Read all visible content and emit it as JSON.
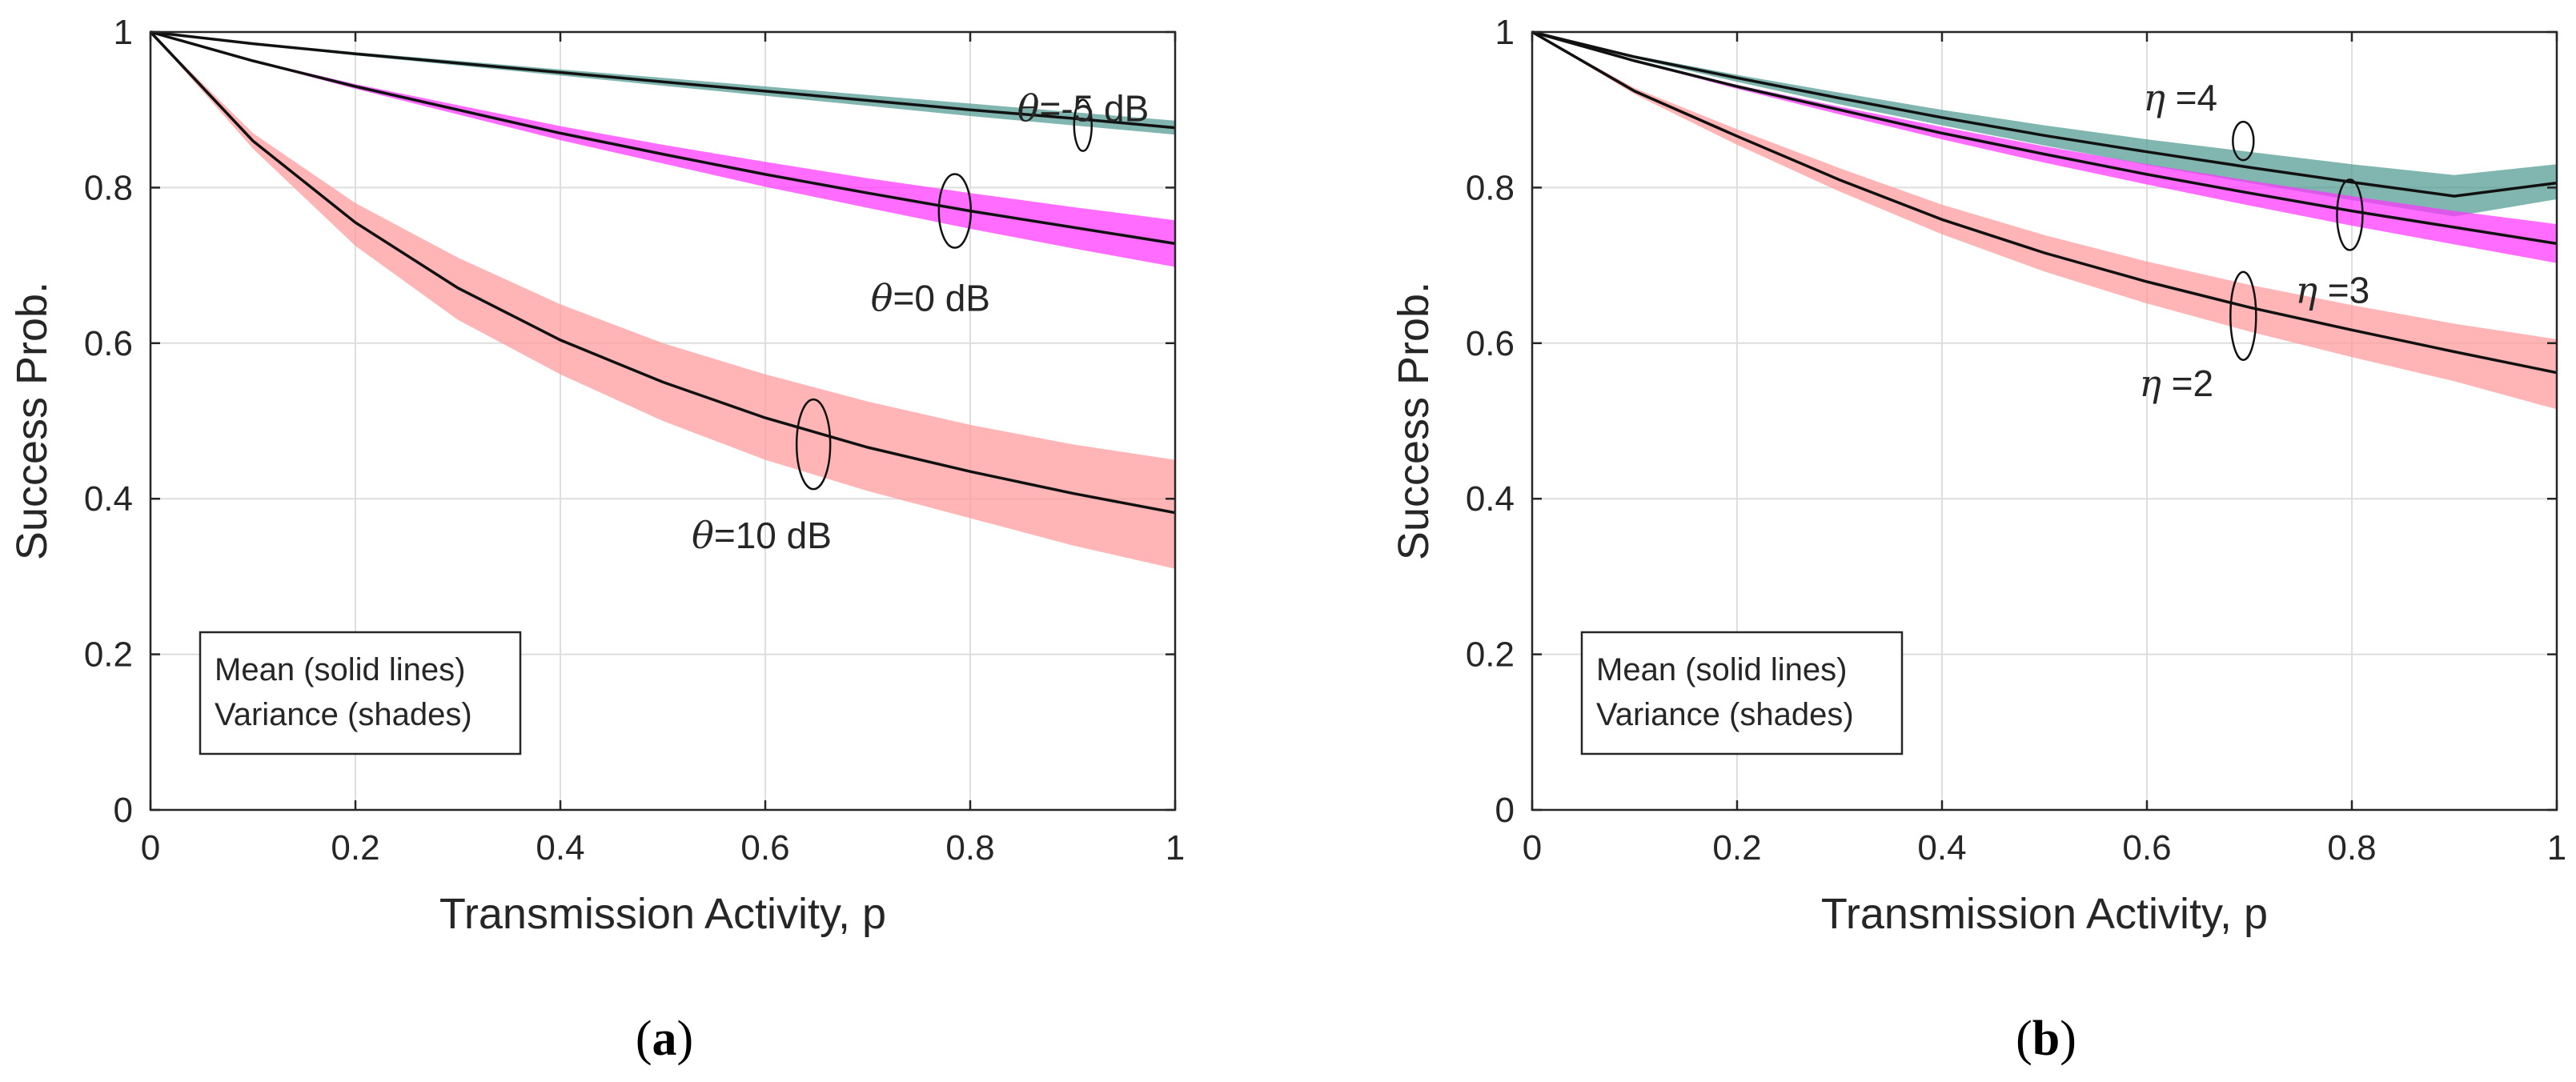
{
  "chart_data": [
    {
      "type": "line",
      "panel_label": "a",
      "xlabel": "Transmission Activity, p",
      "ylabel": "Success Prob.",
      "xlim": [
        0,
        1
      ],
      "ylim": [
        0,
        1
      ],
      "xticks": [
        "0",
        "0.2",
        "0.4",
        "0.6",
        "0.8",
        "1"
      ],
      "yticks": [
        "0",
        "0.2",
        "0.4",
        "0.6",
        "0.8",
        "1"
      ],
      "grid": true,
      "x": [
        0,
        0.1,
        0.2,
        0.3,
        0.4,
        0.5,
        0.6,
        0.7,
        0.8,
        0.9,
        1.0
      ],
      "series": [
        {
          "name": "θ=-5 dB",
          "symbol": "θ",
          "label_rest": "=-5 dB",
          "color": "#4f9a90",
          "mean": [
            1.0,
            0.985,
            0.972,
            0.96,
            0.948,
            0.936,
            0.924,
            0.912,
            0.9,
            0.889,
            0.877
          ],
          "upper": [
            1.0,
            0.986,
            0.974,
            0.963,
            0.952,
            0.941,
            0.93,
            0.919,
            0.908,
            0.897,
            0.886
          ],
          "lower": [
            1.0,
            0.984,
            0.97,
            0.957,
            0.944,
            0.931,
            0.918,
            0.905,
            0.892,
            0.88,
            0.868
          ]
        },
        {
          "name": "θ=0 dB",
          "symbol": "θ",
          "label_rest": "=0 dB",
          "color": "#ff33ff",
          "mean": [
            1.0,
            0.963,
            0.93,
            0.9,
            0.87,
            0.843,
            0.817,
            0.793,
            0.77,
            0.749,
            0.728
          ],
          "upper": [
            1.0,
            0.964,
            0.933,
            0.906,
            0.879,
            0.855,
            0.833,
            0.812,
            0.793,
            0.775,
            0.758
          ],
          "lower": [
            1.0,
            0.962,
            0.927,
            0.894,
            0.861,
            0.831,
            0.801,
            0.774,
            0.747,
            0.722,
            0.698
          ]
        },
        {
          "name": "θ=10 dB",
          "symbol": "θ",
          "label_rest": "=10 dB",
          "color": "#ff9999",
          "mean": [
            1.0,
            0.86,
            0.755,
            0.671,
            0.604,
            0.55,
            0.504,
            0.466,
            0.435,
            0.407,
            0.382
          ],
          "upper": [
            1.0,
            0.87,
            0.78,
            0.71,
            0.65,
            0.6,
            0.56,
            0.525,
            0.495,
            0.47,
            0.45
          ],
          "lower": [
            1.0,
            0.85,
            0.725,
            0.63,
            0.56,
            0.5,
            0.45,
            0.41,
            0.375,
            0.34,
            0.31
          ]
        }
      ],
      "annotations": [
        {
          "series": 0,
          "x": 0.91,
          "y": 0.88
        },
        {
          "series": 1,
          "x": 0.785,
          "y": 0.77
        },
        {
          "series": 2,
          "x": 0.647,
          "y": 0.47
        }
      ],
      "legend": {
        "lines": [
          "Mean (solid lines)",
          "Variance (shades)"
        ],
        "placement": "bottom-left"
      }
    },
    {
      "type": "line",
      "panel_label": "b",
      "xlabel": "Transmission Activity, p",
      "ylabel": "Success Prob.",
      "xlim": [
        0,
        1
      ],
      "ylim": [
        0,
        1
      ],
      "xticks": [
        "0",
        "0.2",
        "0.4",
        "0.6",
        "0.8",
        "1"
      ],
      "yticks": [
        "0",
        "0.2",
        "0.4",
        "0.6",
        "0.8",
        "1"
      ],
      "grid": true,
      "x": [
        0,
        0.1,
        0.2,
        0.3,
        0.4,
        0.5,
        0.6,
        0.7,
        0.8,
        0.9,
        1.0
      ],
      "series": [
        {
          "name": "η =4",
          "symbol": "η",
          "label_rest": " =4",
          "color": "#4f9a90",
          "mean": [
            1.0,
            0.968,
            0.941,
            0.915,
            0.89,
            0.867,
            0.846,
            0.826,
            0.807,
            0.789,
            0.806
          ],
          "upper": [
            1.0,
            0.97,
            0.945,
            0.922,
            0.9,
            0.88,
            0.862,
            0.846,
            0.83,
            0.816,
            0.83
          ],
          "lower": [
            1.0,
            0.966,
            0.936,
            0.907,
            0.88,
            0.854,
            0.829,
            0.806,
            0.784,
            0.763,
            0.785
          ]
        },
        {
          "name": "η =3",
          "symbol": "η",
          "label_rest": " =3",
          "color": "#ff33ff",
          "mean": [
            1.0,
            0.963,
            0.93,
            0.9,
            0.87,
            0.843,
            0.817,
            0.793,
            0.77,
            0.749,
            0.728
          ],
          "upper": [
            1.0,
            0.964,
            0.932,
            0.904,
            0.878,
            0.853,
            0.83,
            0.809,
            0.789,
            0.77,
            0.753
          ],
          "lower": [
            1.0,
            0.962,
            0.927,
            0.894,
            0.862,
            0.832,
            0.804,
            0.777,
            0.751,
            0.727,
            0.703
          ]
        },
        {
          "name": "η =2",
          "symbol": "η",
          "label_rest": " =2",
          "color": "#ff9999",
          "mean": [
            1.0,
            0.924,
            0.866,
            0.81,
            0.759,
            0.716,
            0.679,
            0.646,
            0.617,
            0.589,
            0.562
          ],
          "upper": [
            1.0,
            0.928,
            0.875,
            0.825,
            0.778,
            0.739,
            0.705,
            0.675,
            0.649,
            0.625,
            0.605
          ],
          "lower": [
            1.0,
            0.92,
            0.855,
            0.795,
            0.74,
            0.692,
            0.651,
            0.615,
            0.582,
            0.551,
            0.515
          ]
        }
      ],
      "annotations": [
        {
          "series": 0,
          "x": 0.694,
          "y": 0.86
        },
        {
          "series": 1,
          "x": 0.798,
          "y": 0.765
        },
        {
          "series": 2,
          "x": 0.694,
          "y": 0.635
        }
      ],
      "legend": {
        "lines": [
          "Mean (solid lines)",
          "Variance (shades)"
        ],
        "placement": "bottom-left"
      }
    }
  ]
}
